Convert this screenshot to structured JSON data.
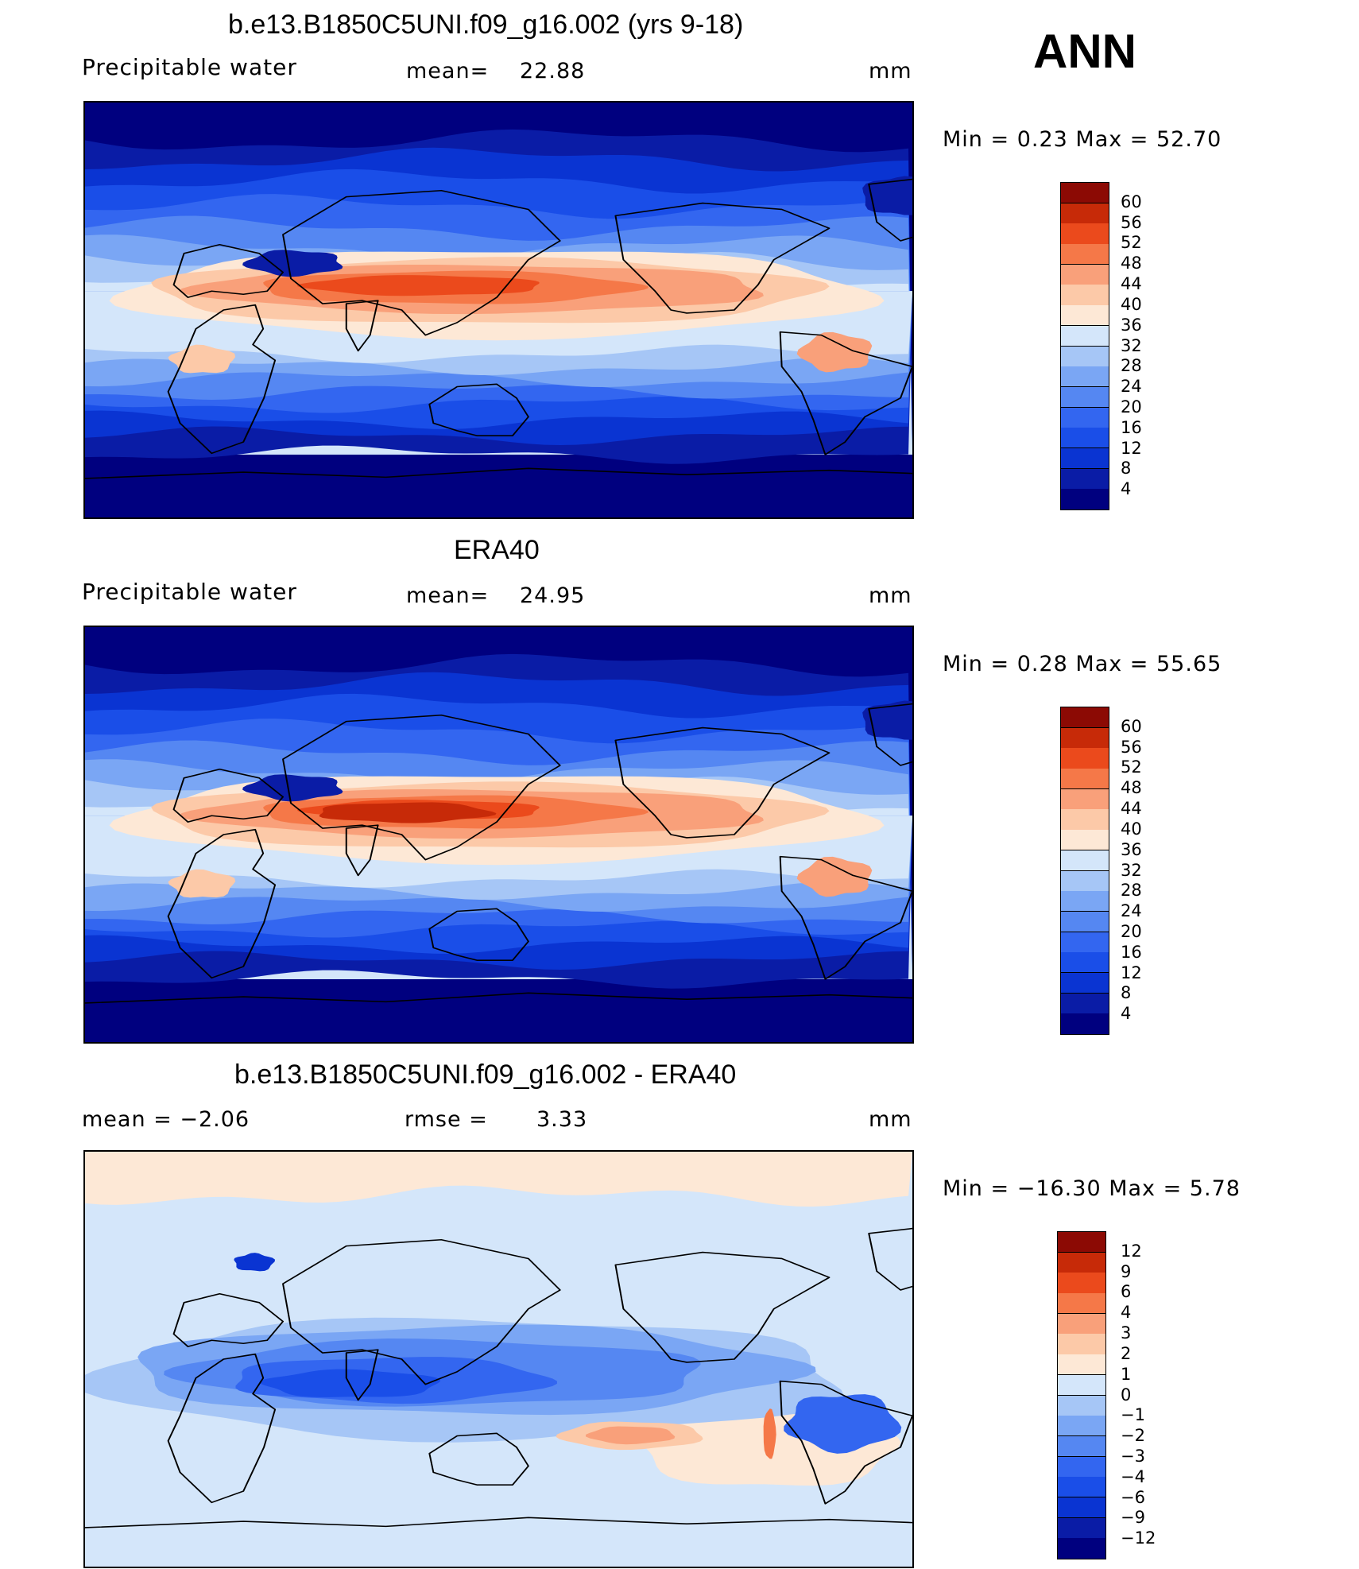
{
  "season": "ANN",
  "units": "mm",
  "panels": [
    {
      "title": "b.e13.B1850C5UNI.f09_g16.002 (yrs 9-18)",
      "left_label": "Precipitable  water",
      "stat_label": "mean=",
      "stat_value": "22.88",
      "units": "mm",
      "minmax": "Min  =    0.23  Max  =    52.70"
    },
    {
      "title": "ERA40",
      "left_label": "Precipitable  water",
      "stat_label": "mean=",
      "stat_value": "24.95",
      "units": "mm",
      "minmax": "Min  =    0.28  Max  =    55.65"
    },
    {
      "title": "b.e13.B1850C5UNI.f09_g16.002 - ERA40",
      "left_label": "mean  =    −2.06",
      "stat_label": "rmse  =",
      "stat_value": "3.33",
      "units": "mm",
      "minmax": "Min  = −16.30  Max  =     5.78"
    }
  ],
  "chart_data": [
    {
      "type": "heatmap",
      "title": "b.e13.B1850C5UNI.f09_g16.002 (yrs 9-18)",
      "variable": "Precipitable water",
      "units": "mm",
      "mean": 22.88,
      "min": 0.23,
      "max": 52.7,
      "colorbar_levels": [
        4,
        8,
        12,
        16,
        20,
        24,
        28,
        32,
        36,
        40,
        44,
        48,
        52,
        56,
        60
      ],
      "colorbar_colors": [
        "#00007f",
        "#0a1ca6",
        "#0a34d2",
        "#1a4ee8",
        "#3366f0",
        "#5587f2",
        "#7aa6f4",
        "#a6c6f6",
        "#d4e6fa",
        "#fde8d6",
        "#fcc9a8",
        "#f9a07a",
        "#f57848",
        "#eb4a1c",
        "#c72a08",
        "#8c0a04"
      ],
      "map": "global lat-lon, coastlines"
    },
    {
      "type": "heatmap",
      "title": "ERA40",
      "variable": "Precipitable water",
      "units": "mm",
      "mean": 24.95,
      "min": 0.28,
      "max": 55.65,
      "colorbar_levels": [
        4,
        8,
        12,
        16,
        20,
        24,
        28,
        32,
        36,
        40,
        44,
        48,
        52,
        56,
        60
      ],
      "colorbar_colors": [
        "#00007f",
        "#0a1ca6",
        "#0a34d2",
        "#1a4ee8",
        "#3366f0",
        "#5587f2",
        "#7aa6f4",
        "#a6c6f6",
        "#d4e6fa",
        "#fde8d6",
        "#fcc9a8",
        "#f9a07a",
        "#f57848",
        "#eb4a1c",
        "#c72a08",
        "#8c0a04"
      ],
      "map": "global lat-lon, coastlines"
    },
    {
      "type": "heatmap",
      "title": "b.e13.B1850C5UNI.f09_g16.002 - ERA40",
      "units": "mm",
      "mean": -2.06,
      "rmse": 3.33,
      "min": -16.3,
      "max": 5.78,
      "colorbar_levels": [
        -12,
        -9,
        -6,
        -4,
        -3,
        -2,
        -1,
        0,
        1,
        2,
        3,
        4,
        6,
        9,
        12
      ],
      "colorbar_labels": [
        "−12",
        "−9",
        "−6",
        "−4",
        "−3",
        "−2",
        "−1",
        "0",
        "1",
        "2",
        "3",
        "4",
        "6",
        "9",
        "12"
      ],
      "colorbar_colors": [
        "#00007f",
        "#0a1ca6",
        "#0a34d2",
        "#1a4ee8",
        "#3366f0",
        "#5587f2",
        "#7aa6f4",
        "#a6c6f6",
        "#d4e6fa",
        "#fde8d6",
        "#fcc9a8",
        "#f9a07a",
        "#f57848",
        "#eb4a1c",
        "#c72a08",
        "#8c0a04"
      ],
      "map": "global lat-lon, coastlines"
    }
  ]
}
